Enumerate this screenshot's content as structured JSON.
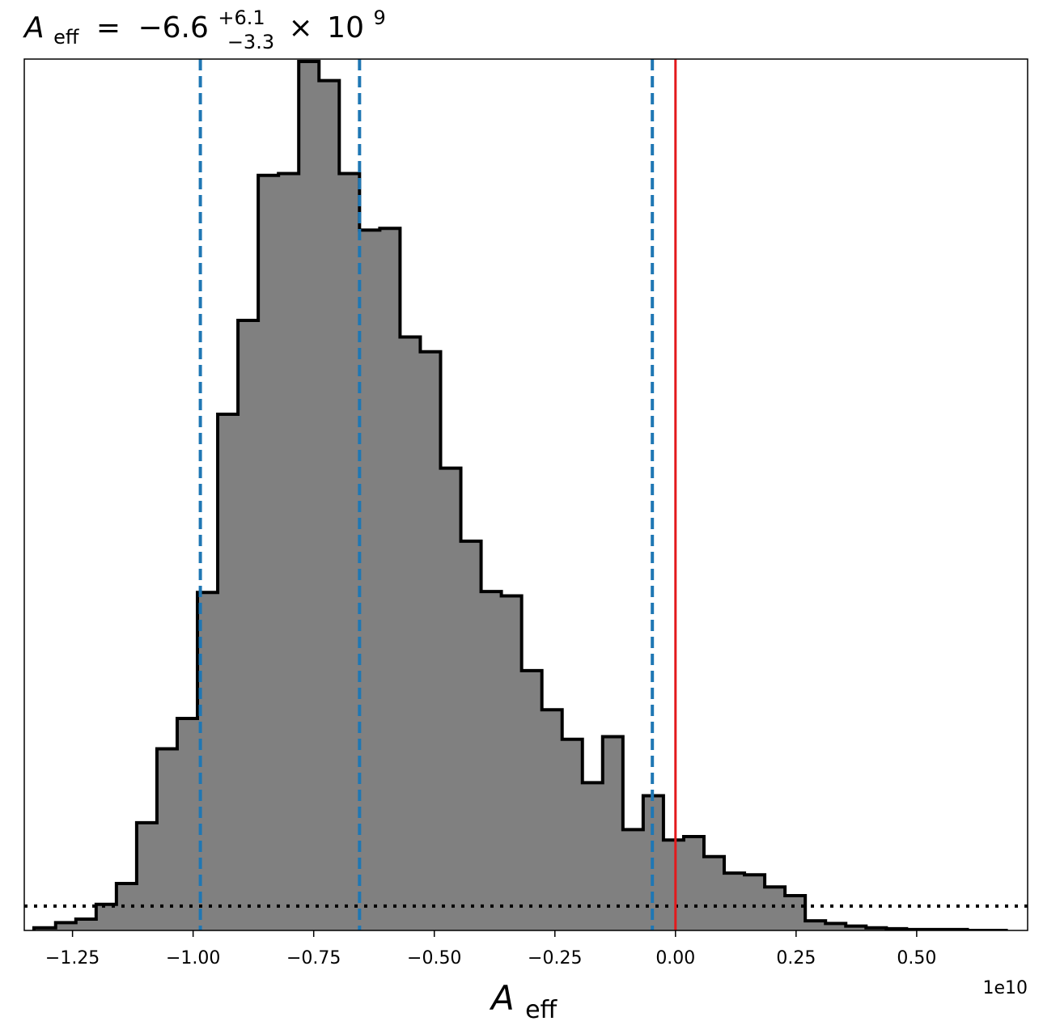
{
  "chart_data": {
    "type": "bar",
    "title": {
      "symbol": "A",
      "symbol_sub": "eff",
      "equals": "=",
      "value": "−6.6",
      "upper": "+6.1",
      "lower": "−3.3",
      "times": "×",
      "base": "10",
      "exponent": "9"
    },
    "xlabel": {
      "symbol": "A",
      "sub": "eff"
    },
    "x_offset_label": "1e10",
    "xlim": [
      -1.35,
      0.73
    ],
    "ylim": [
      0,
      1.0
    ],
    "y_axis_visible": false,
    "grid": false,
    "x_ticks": [
      -1.25,
      -1.0,
      -0.75,
      -0.5,
      -0.25,
      0.0,
      0.25,
      0.5
    ],
    "x_tick_labels": [
      "−1.25",
      "−1.00",
      "−0.75",
      "−0.50",
      "−0.25",
      "0.00",
      "0.25",
      "0.50"
    ],
    "histogram": {
      "bin_edges": [
        -1.33,
        -1.285,
        -1.243,
        -1.201,
        -1.159,
        -1.117,
        -1.075,
        -1.033,
        -0.991,
        -0.949,
        -0.907,
        -0.865,
        -0.823,
        -0.781,
        -0.739,
        -0.697,
        -0.655,
        -0.613,
        -0.571,
        -0.529,
        -0.487,
        -0.445,
        -0.403,
        -0.361,
        -0.319,
        -0.277,
        -0.235,
        -0.193,
        -0.151,
        -0.109,
        -0.067,
        -0.025,
        0.017,
        0.059,
        0.101,
        0.143,
        0.185,
        0.227,
        0.269,
        0.311,
        0.353,
        0.395,
        0.437,
        0.479,
        0.521,
        0.563,
        0.605,
        0.647,
        0.689
      ],
      "counts": [
        0.003,
        0.009,
        0.013,
        0.03,
        0.054,
        0.124,
        0.209,
        0.244,
        0.389,
        0.594,
        0.702,
        0.869,
        0.871,
        1.0,
        0.978,
        0.871,
        0.806,
        0.808,
        0.683,
        0.666,
        0.532,
        0.448,
        0.39,
        0.385,
        0.299,
        0.254,
        0.22,
        0.17,
        0.223,
        0.116,
        0.155,
        0.104,
        0.108,
        0.085,
        0.066,
        0.064,
        0.05,
        0.04,
        0.011,
        0.008,
        0.005,
        0.003,
        0.002,
        0.001,
        0.001,
        0.001,
        0.0,
        0.0
      ],
      "fill": "#808080",
      "edge": "#000000"
    },
    "prior_line": {
      "style": "dotted",
      "color": "#000000",
      "x": [
        -1.35,
        0.73
      ],
      "y": [
        0.028,
        0.028
      ]
    },
    "vlines": [
      {
        "x": -0.985,
        "color": "#1f77b4",
        "style": "dashed"
      },
      {
        "x": -0.655,
        "color": "#1f77b4",
        "style": "dashed"
      },
      {
        "x": -0.048,
        "color": "#1f77b4",
        "style": "dashed"
      },
      {
        "x": 0.0,
        "color": "#e31a1c",
        "style": "solid"
      }
    ]
  }
}
